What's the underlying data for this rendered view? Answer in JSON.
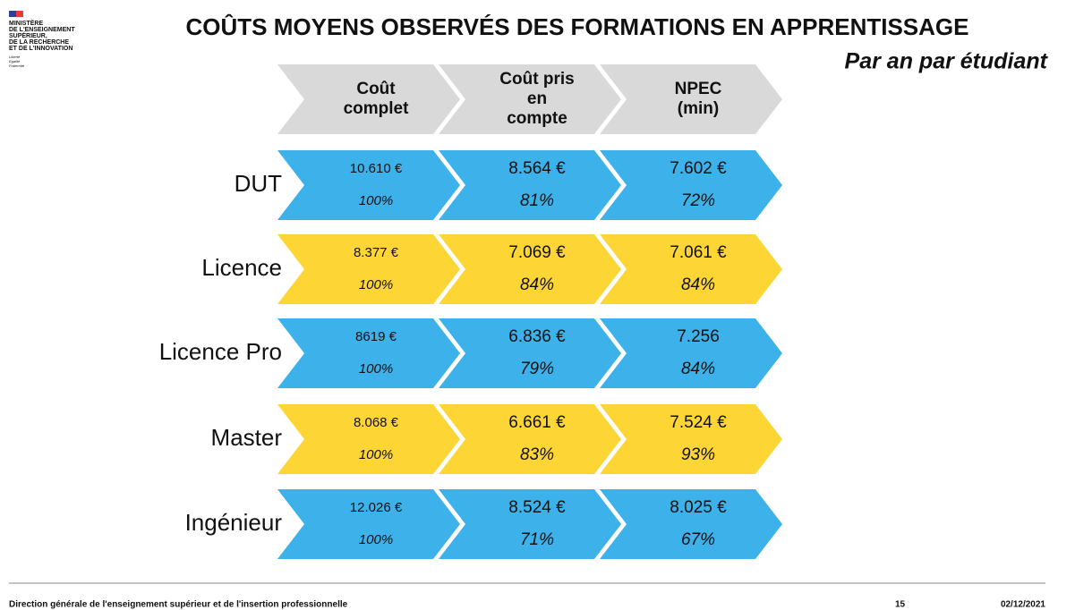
{
  "logo": {
    "lines": [
      "MINISTÈRE",
      "DE L'ENSEIGNEMENT",
      "SUPÉRIEUR,",
      "DE LA RECHERCHE",
      "ET DE L'INNOVATION"
    ],
    "motto": [
      "Liberté",
      "Égalité",
      "Fraternité"
    ]
  },
  "header": {
    "title": "COÛTS MOYENS OBSERVÉS DES FORMATIONS EN APPRENTISSAGE",
    "subtitle": "Par an par étudiant"
  },
  "table": {
    "columns": [
      [
        "Coût",
        "complet"
      ],
      [
        "Coût pris",
        "en",
        "compte"
      ],
      [
        "NPEC",
        "(min)"
      ]
    ],
    "rows": [
      {
        "label": "DUT",
        "cells": [
          [
            "10.610 €",
            "100%"
          ],
          [
            "8.564 €",
            "81%"
          ],
          [
            "7.602 €",
            "72%"
          ]
        ]
      },
      {
        "label": "Licence",
        "cells": [
          [
            "8.377 €",
            "100%"
          ],
          [
            "7.069 €",
            "84%"
          ],
          [
            "7.061 €",
            "84%"
          ]
        ]
      },
      {
        "label": "Licence Pro",
        "cells": [
          [
            "8619 €",
            "100%"
          ],
          [
            "6.836 €",
            "79%"
          ],
          [
            "7.256",
            "84%"
          ]
        ]
      },
      {
        "label": "Master",
        "cells": [
          [
            "8.068 €",
            "100%"
          ],
          [
            "6.661 €",
            "83%"
          ],
          [
            "7.524 €",
            "93%"
          ]
        ]
      },
      {
        "label": "Ingénieur",
        "cells": [
          [
            "12.026 €",
            "100%"
          ],
          [
            "8.524 €",
            "71%"
          ],
          [
            "8.025 €",
            "67%"
          ]
        ]
      }
    ]
  },
  "footer": {
    "organisation": "Direction générale de l'enseignement supérieur et de l'insertion professionnelle",
    "page": "15",
    "date": "02/12/2021"
  }
}
